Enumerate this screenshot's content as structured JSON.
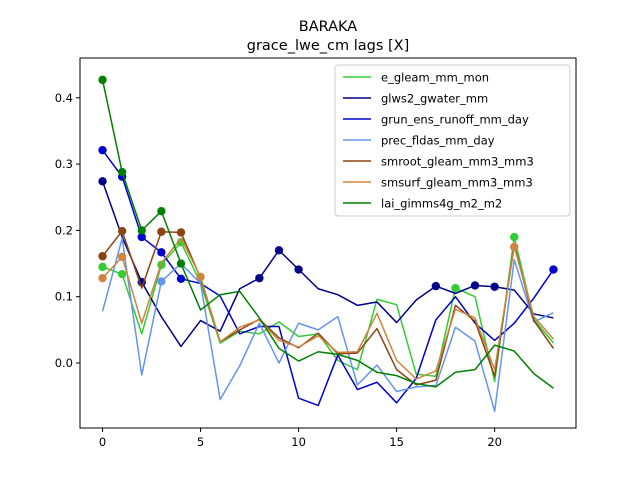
{
  "chart_data": {
    "type": "line",
    "title": "BARAKA",
    "subtitle": "grace_lwe_cm lags [X]",
    "xlabel": "",
    "ylabel": "",
    "xlim": [
      -1.15,
      24.15
    ],
    "ylim": [
      -0.098,
      0.46
    ],
    "xticks": [
      0,
      5,
      10,
      15,
      20
    ],
    "xtick_labels": [
      "0",
      "5",
      "10",
      "15",
      "20"
    ],
    "yticks": [
      0.0,
      0.1,
      0.2,
      0.3,
      0.4
    ],
    "ytick_labels": [
      "0.0",
      "0.1",
      "0.2",
      "0.3",
      "0.4"
    ],
    "grid": false,
    "legend_position": "top-right",
    "x": [
      0,
      1,
      2,
      3,
      4,
      5,
      6,
      7,
      8,
      9,
      10,
      11,
      12,
      13,
      14,
      15,
      16,
      17,
      18,
      19,
      20,
      21,
      22,
      23
    ],
    "series": [
      {
        "name": "e_gleam_mm_mon",
        "color": "#32cd32",
        "values": [
          0.145,
          0.134,
          0.044,
          0.148,
          0.182,
          0.121,
          0.03,
          0.048,
          0.044,
          0.062,
          0.04,
          0.044,
          0.004,
          -0.01,
          0.096,
          0.088,
          -0.017,
          -0.02,
          0.113,
          0.1,
          -0.028,
          0.19,
          0.066,
          0.03
        ],
        "markers": [
          0,
          1,
          3,
          4,
          18,
          21
        ]
      },
      {
        "name": "glws2_gwater_mm",
        "color": "#00008b",
        "values": [
          0.274,
          0.19,
          0.122,
          0.07,
          0.025,
          0.064,
          0.048,
          0.112,
          0.128,
          0.17,
          0.141,
          0.112,
          0.103,
          0.087,
          0.092,
          0.061,
          0.095,
          0.116,
          0.105,
          0.117,
          0.115,
          0.11,
          0.074,
          0.068
        ],
        "markers": [
          0,
          2,
          8,
          9,
          10,
          17,
          19,
          20
        ]
      },
      {
        "name": "grun_ens_runoff_mm_day",
        "color": "#0000cd",
        "values": [
          0.321,
          0.281,
          0.19,
          0.167,
          0.127,
          0.12,
          0.101,
          0.044,
          0.055,
          0.055,
          -0.053,
          -0.064,
          0.012,
          -0.04,
          -0.029,
          -0.06,
          -0.023,
          0.065,
          0.1,
          0.06,
          0.034,
          0.06,
          0.098,
          0.141
        ],
        "markers": [
          0,
          1,
          2,
          3,
          4,
          23
        ]
      },
      {
        "name": "prec_fldas_mm_day",
        "color": "#6495ed",
        "values": [
          0.078,
          0.188,
          -0.018,
          0.123,
          0.15,
          0.12,
          -0.055,
          -0.004,
          0.06,
          0.0,
          0.06,
          0.05,
          0.07,
          -0.033,
          -0.003,
          -0.043,
          -0.036,
          -0.034,
          0.054,
          0.033,
          -0.073,
          0.156,
          0.062,
          0.076
        ],
        "markers": [
          3
        ]
      },
      {
        "name": "smroot_gleam_mm3_mm3",
        "color": "#8b4513",
        "values": [
          0.161,
          0.199,
          0.113,
          0.198,
          0.197,
          0.128,
          0.032,
          0.05,
          0.066,
          0.038,
          0.023,
          0.045,
          0.014,
          0.015,
          0.052,
          -0.01,
          -0.033,
          -0.026,
          0.087,
          0.063,
          -0.02,
          0.179,
          0.064,
          0.022
        ],
        "markers": [
          0,
          1,
          3,
          4
        ]
      },
      {
        "name": "smsurf_gleam_mm3_mm3",
        "color": "#cd853f",
        "values": [
          0.128,
          0.16,
          0.06,
          0.151,
          0.188,
          0.13,
          0.032,
          0.054,
          0.065,
          0.034,
          0.024,
          0.041,
          0.016,
          0.017,
          0.075,
          0.004,
          -0.024,
          -0.012,
          0.081,
          0.068,
          -0.01,
          0.175,
          0.07,
          0.036
        ],
        "markers": [
          0,
          1,
          5,
          21
        ]
      },
      {
        "name": "lai_gimms4g_m2_m2",
        "color": "#008000",
        "values": [
          0.427,
          0.288,
          0.2,
          0.229,
          0.15,
          0.08,
          0.103,
          0.108,
          0.068,
          0.022,
          0.003,
          0.017,
          0.013,
          0.004,
          -0.014,
          -0.019,
          -0.031,
          -0.036,
          -0.014,
          -0.01,
          0.027,
          0.018,
          -0.016,
          -0.038
        ],
        "markers": [
          0,
          1,
          2,
          3,
          4
        ]
      }
    ]
  }
}
